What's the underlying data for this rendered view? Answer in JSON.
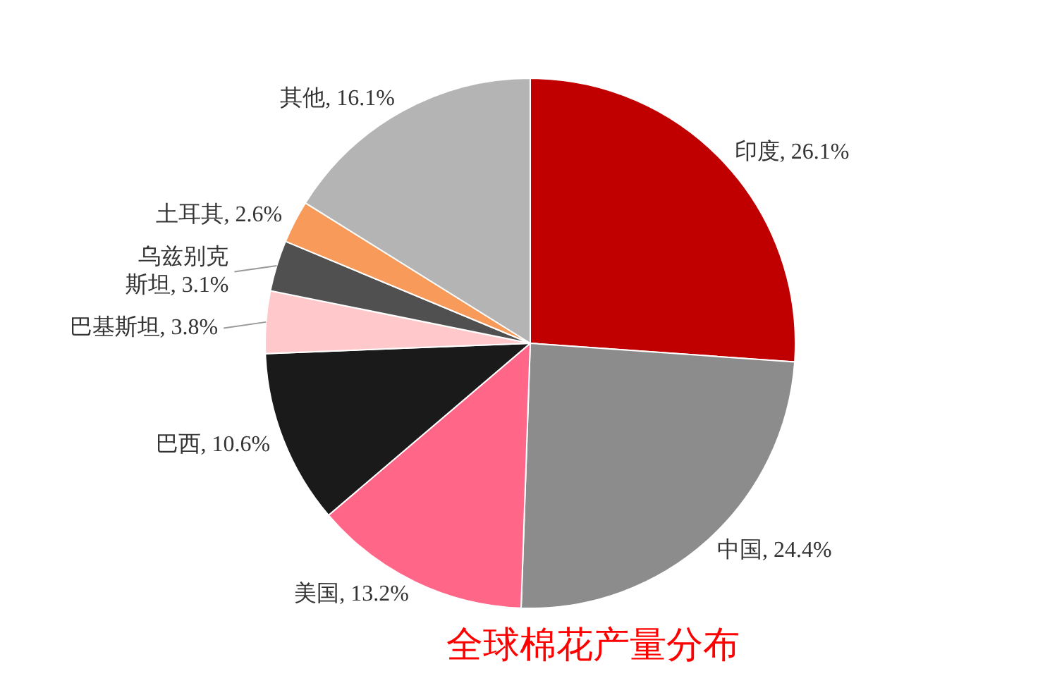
{
  "chart_data": {
    "type": "pie",
    "title": "全球棉花产量分布",
    "categories": [
      "印度",
      "中国",
      "美国",
      "巴西",
      "巴基斯坦",
      "乌兹别克斯坦",
      "土耳其",
      "其他"
    ],
    "values": [
      26.1,
      24.4,
      13.2,
      10.6,
      3.8,
      3.1,
      2.6,
      16.1
    ],
    "value_labels": [
      "26.1%",
      "24.4%",
      "13.2%",
      "10.6%",
      "3.8%",
      "3.1%",
      "2.6%",
      "16.1%"
    ],
    "colors": [
      "#c00000",
      "#8c8c8c",
      "#ff6688",
      "#1a1a1a",
      "#ffc9cc",
      "#505050",
      "#f79a5a",
      "#b4b4b4"
    ],
    "legend": false
  }
}
